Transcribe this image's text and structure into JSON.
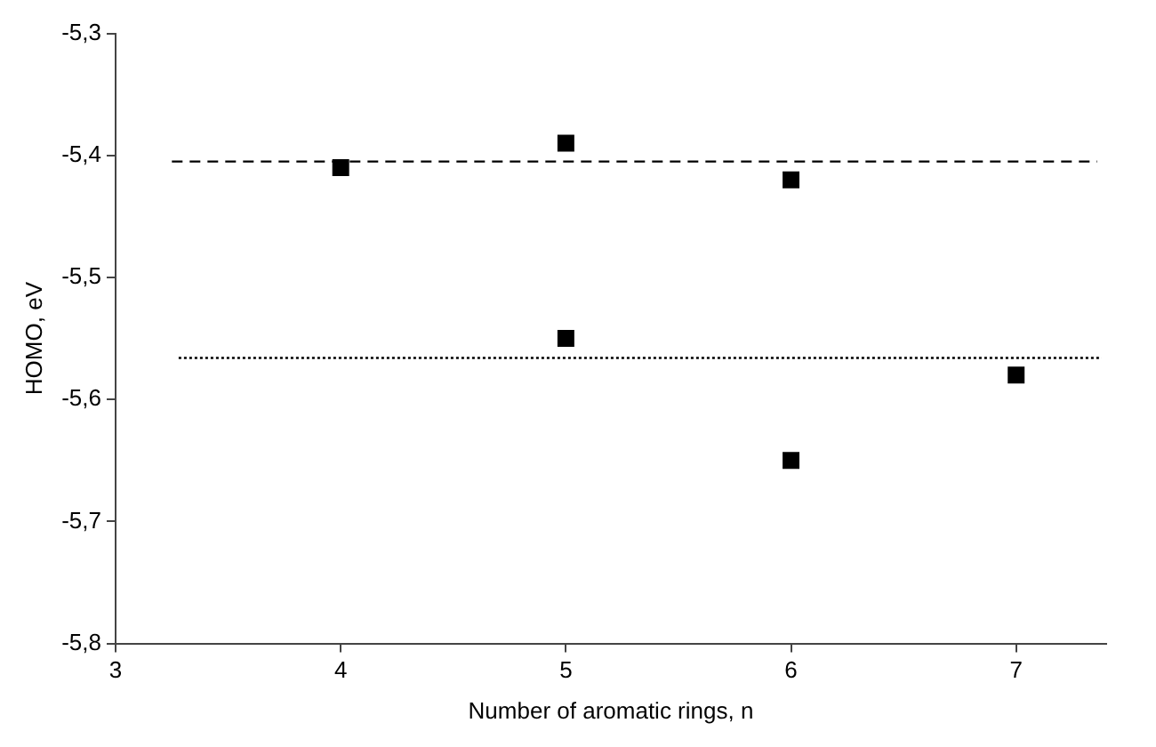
{
  "chart_data": {
    "type": "scatter",
    "xlabel": "Number of aromatic rings, n",
    "ylabel": "HOMO, eV",
    "series": [
      {
        "color": "#000000",
        "marker": "square",
        "x": [
          4,
          5,
          5,
          6,
          6,
          7
        ],
        "values": [
          -5.41,
          -5.39,
          -5.55,
          -5.42,
          -5.65,
          -5.58
        ]
      },
      {
        "type": "line",
        "color": "#000000",
        "marker": "none",
        "line_style": "dashed",
        "x": [
          3.25,
          7.36
        ],
        "values": [
          -5.405,
          -5.405
        ]
      },
      {
        "type": "line",
        "color": "#000000",
        "marker": "none",
        "line_style": "dotted",
        "x": [
          3.28,
          7.38
        ],
        "values": [
          -5.566,
          -5.566
        ]
      }
    ],
    "xlim": [
      3,
      7.4
    ],
    "xticks": [
      3,
      4,
      5,
      6,
      7
    ],
    "ylim": [
      -5.8,
      -5.3
    ],
    "yticks": [
      {
        "value": -5.8,
        "label": "-5,8"
      },
      {
        "value": -5.7,
        "label": "-5,7"
      },
      {
        "value": -5.6,
        "label": "-5,6"
      },
      {
        "value": -5.5,
        "label": "-5,5"
      },
      {
        "value": -5.4,
        "label": "-5,4"
      },
      {
        "value": -5.3,
        "label": "-5,3"
      }
    ],
    "grid": false,
    "legend": false
  }
}
